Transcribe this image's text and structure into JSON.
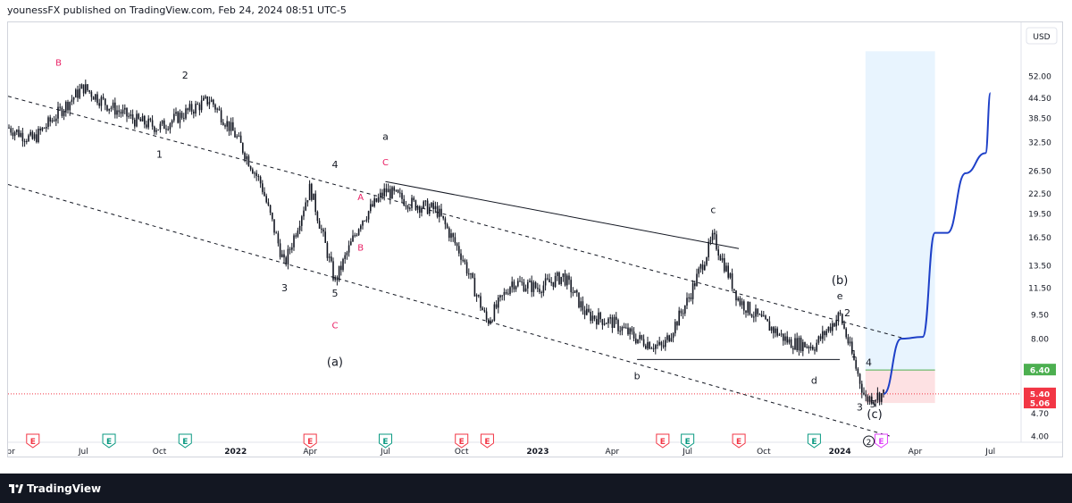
{
  "header": {
    "publisher": "younessFX published on TradingView.com, Feb 24, 2024 08:51 UTC-5"
  },
  "footer": {
    "brand": "TradingView",
    "logo_icon": "tradingview-logo-icon"
  },
  "chart_data": {
    "type": "candlestick",
    "currency": "USD",
    "y_scale": "log",
    "price_ticks": [
      52.0,
      44.5,
      38.5,
      32.5,
      26.5,
      22.5,
      19.5,
      16.5,
      13.5,
      11.5,
      9.5,
      8.0,
      6.4,
      5.4,
      5.06,
      4.7,
      4.0
    ],
    "price_tick_labels": [
      "52.00",
      "44.50",
      "38.50",
      "32.50",
      "26.50",
      "22.50",
      "19.50",
      "16.50",
      "13.50",
      "11.50",
      "9.50",
      "8.00",
      "6.40",
      "5.40",
      "5.06",
      "4.70",
      "4.00"
    ],
    "price_badges": [
      {
        "label": "6.40",
        "color": "#4caf50"
      },
      {
        "label": "5.40",
        "color": "#f23645"
      },
      {
        "label": "5.06",
        "color": "#f23645"
      }
    ],
    "last_price": 5.4,
    "x_labels": [
      {
        "date": "2021-04",
        "label": "Apr"
      },
      {
        "date": "2021-07",
        "label": "Jul"
      },
      {
        "date": "2021-10",
        "label": "Oct"
      },
      {
        "date": "2022-01",
        "label": "2022",
        "bold": true
      },
      {
        "date": "2022-04",
        "label": "Apr"
      },
      {
        "date": "2022-07",
        "label": "Jul"
      },
      {
        "date": "2022-10",
        "label": "Oct"
      },
      {
        "date": "2023-01",
        "label": "2023",
        "bold": true
      },
      {
        "date": "2023-04",
        "label": "Apr"
      },
      {
        "date": "2023-07",
        "label": "Jul"
      },
      {
        "date": "2023-10",
        "label": "Oct"
      },
      {
        "date": "2024-01",
        "label": "2024",
        "bold": true
      },
      {
        "date": "2024-04",
        "label": "Apr"
      },
      {
        "date": "2024-07",
        "label": "Jul"
      }
    ],
    "price_path": [
      [
        "2021-04",
        36
      ],
      [
        "2021-05",
        33
      ],
      [
        "2021-06",
        40
      ],
      [
        "2021-07",
        48
      ],
      [
        "2021-08",
        42
      ],
      [
        "2021-09",
        38
      ],
      [
        "2021-10",
        36
      ],
      [
        "2021-11",
        40
      ],
      [
        "2021-12",
        44
      ],
      [
        "2022-01",
        34
      ],
      [
        "2022-02",
        24
      ],
      [
        "2022-03",
        13.5
      ],
      [
        "2022-04",
        23.5
      ],
      [
        "2022-05",
        12
      ],
      [
        "2022-06",
        18.5
      ],
      [
        "2022-07",
        23
      ],
      [
        "2022-08",
        21
      ],
      [
        "2022-09",
        20
      ],
      [
        "2022-10",
        14.5
      ],
      [
        "2022-11",
        9.0
      ],
      [
        "2022-12",
        12
      ],
      [
        "2023-01",
        11.5
      ],
      [
        "2023-02",
        12.5
      ],
      [
        "2023-03",
        9.5
      ],
      [
        "2023-04",
        9.0
      ],
      [
        "2023-05",
        8.0
      ],
      [
        "2023-06",
        7.5
      ],
      [
        "2023-07",
        10.5
      ],
      [
        "2023-08",
        16.5
      ],
      [
        "2023-09",
        10.5
      ],
      [
        "2023-10",
        9.0
      ],
      [
        "2023-11",
        7.8
      ],
      [
        "2023-12",
        7.6
      ],
      [
        "2024-01",
        9.5
      ],
      [
        "2024-02",
        5.2
      ],
      [
        "2024-02-23",
        5.4
      ]
    ],
    "projection_path": [
      [
        "2024-02-23",
        5.4
      ],
      [
        "2024-03-15",
        8.0
      ],
      [
        "2024-04-10",
        8.1
      ],
      [
        "2024-04-25",
        17.0
      ],
      [
        "2024-05-10",
        17.0
      ],
      [
        "2024-06-01",
        26.0
      ],
      [
        "2024-06-25",
        30.0
      ],
      [
        "2024-07-01",
        46.0
      ]
    ],
    "channel_lines": [
      {
        "from": [
          "2021-04",
          45
        ],
        "to": [
          "2024-03-20",
          8.0
        ]
      },
      {
        "from": [
          "2021-04",
          24
        ],
        "to": [
          "2024-03-01",
          4.0
        ]
      }
    ],
    "triangle_lines": [
      {
        "from": [
          "2022-07",
          24.5
        ],
        "to": [
          "2023-09",
          15.2
        ]
      },
      {
        "from": [
          "2023-05",
          6.9
        ],
        "to": [
          "2024-01",
          6.9
        ]
      }
    ],
    "position_box": {
      "from": "2024-02-01",
      "to": "2024-04-25",
      "target": 62.0,
      "entry": 6.4,
      "stop": 5.06
    },
    "wave_labels": [
      {
        "label": "B",
        "at": [
          "2021-06",
          56
        ],
        "color": "#e91e63"
      },
      {
        "label": "2",
        "at": [
          "2021-11",
          51
        ],
        "color": "#131722"
      },
      {
        "label": "1",
        "at": [
          "2021-10",
          29
        ],
        "color": "#131722"
      },
      {
        "label": "4",
        "at": [
          "2022-05",
          27
        ],
        "color": "#131722"
      },
      {
        "label": "3",
        "at": [
          "2022-03",
          11.2
        ],
        "color": "#131722"
      },
      {
        "label": "5",
        "at": [
          "2022-05",
          10.8
        ],
        "color": "#131722"
      },
      {
        "label": "C",
        "at": [
          "2022-05",
          8.6
        ],
        "color": "#e91e63"
      },
      {
        "label": "(a)",
        "at": [
          "2022-05",
          6.6
        ],
        "color": "#131722"
      },
      {
        "label": "a",
        "at": [
          "2022-07",
          33
        ],
        "color": "#131722"
      },
      {
        "label": "C",
        "at": [
          "2022-07",
          27.5
        ],
        "color": "#e91e63"
      },
      {
        "label": "A",
        "at": [
          "2022-06",
          21.5
        ],
        "color": "#e91e63"
      },
      {
        "label": "B",
        "at": [
          "2022-06",
          15.0
        ],
        "color": "#e91e63"
      },
      {
        "label": "c",
        "at": [
          "2023-08",
          19.6
        ],
        "color": "#131722"
      },
      {
        "label": "b",
        "at": [
          "2023-05",
          6.0
        ],
        "color": "#131722"
      },
      {
        "label": "d",
        "at": [
          "2023-12",
          5.8
        ],
        "color": "#131722"
      },
      {
        "label": "(b)",
        "at": [
          "2024-01",
          11.8
        ],
        "color": "#131722"
      },
      {
        "label": "e",
        "at": [
          "2024-01",
          10.6
        ],
        "color": "#131722"
      },
      {
        "label": "2",
        "at": [
          "2024-01-10",
          9.4
        ],
        "color": "#131722"
      },
      {
        "label": "1",
        "at": [
          "2024-01-18",
          7.0
        ],
        "color": "#131722"
      },
      {
        "label": "4",
        "at": [
          "2024-02-05",
          6.6
        ],
        "color": "#131722"
      },
      {
        "label": "3",
        "at": [
          "2024-01-25",
          4.8
        ],
        "color": "#131722"
      },
      {
        "label": "5",
        "at": [
          "2024-02-10",
          4.9
        ],
        "color": "#131722"
      },
      {
        "label": "(c)",
        "at": [
          "2024-02-12",
          4.55
        ],
        "color": "#131722"
      }
    ],
    "event_markers": {
      "label": "E",
      "earnings_red": [
        "2021-05",
        "2022-04",
        "2022-10",
        "2022-11",
        "2023-06",
        "2023-09"
      ],
      "earnings_green": [
        "2021-08",
        "2021-11",
        "2022-07",
        "2023-07",
        "2023-12"
      ],
      "pending": [
        "2024-02-20"
      ],
      "circle_numbers": [
        {
          "label": "2",
          "date": "2024-02-05"
        }
      ]
    }
  }
}
